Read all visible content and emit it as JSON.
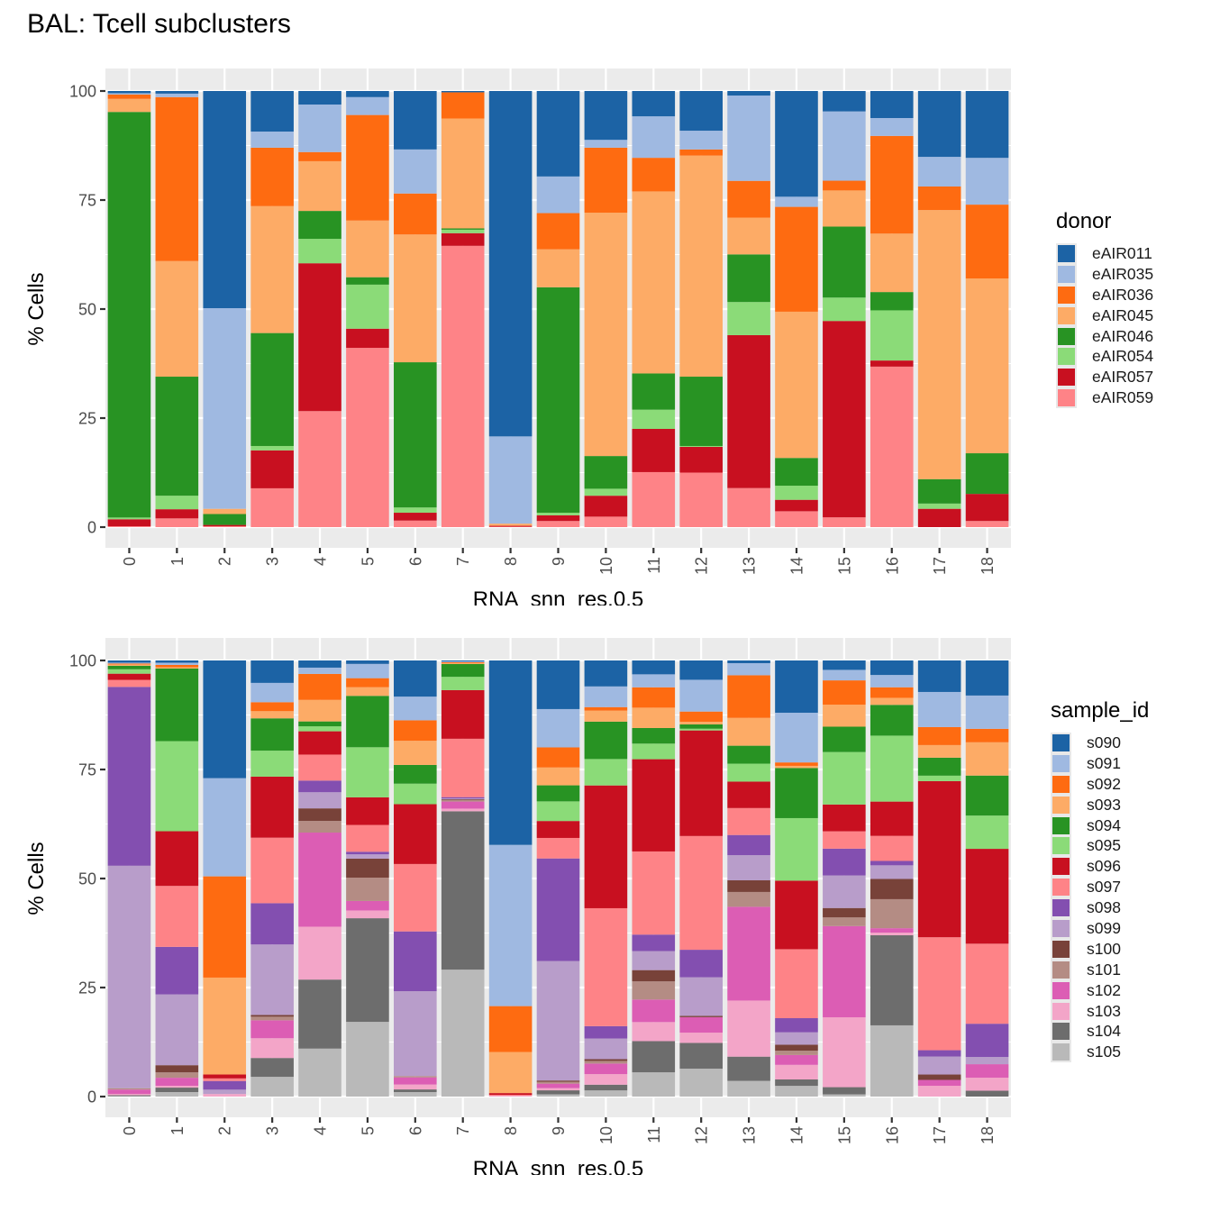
{
  "title": "BAL: Tcell subclusters",
  "chart_data": [
    {
      "type": "bar",
      "stacked": true,
      "title": "",
      "xlabel": "RNA_snn_res.0.5",
      "ylabel": "% Cells",
      "ylim": [
        0,
        100
      ],
      "yticks": [
        "0",
        "25",
        "50",
        "75",
        "100"
      ],
      "grid": true,
      "legend_title": "donor",
      "legend_position": "right",
      "categories": [
        "0",
        "1",
        "2",
        "3",
        "4",
        "5",
        "6",
        "7",
        "8",
        "9",
        "10",
        "11",
        "12",
        "13",
        "14",
        "15",
        "16",
        "17",
        "18"
      ],
      "series": [
        {
          "name": "eAIR011",
          "color": "#1c63a5",
          "values": [
            0.5,
            0.6,
            49.8,
            9.3,
            3.1,
            1.4,
            13.4,
            0.3,
            79.2,
            19.6,
            11.2,
            5.8,
            9.1,
            1.0,
            24.0,
            4.8,
            6.2,
            15.1,
            15.3
          ]
        },
        {
          "name": "eAIR035",
          "color": "#9fb9e1",
          "values": [
            0.3,
            0.8,
            46.0,
            3.7,
            10.9,
            4.1,
            10.1,
            0.0,
            20.0,
            8.4,
            1.8,
            9.5,
            4.3,
            18.8,
            2.3,
            16.3,
            4.1,
            6.8,
            10.7
          ]
        },
        {
          "name": "eAIR036",
          "color": "#fe6b11",
          "values": [
            1.0,
            37.6,
            0.0,
            13.4,
            2.1,
            24.2,
            9.4,
            6.0,
            0.0,
            8.3,
            14.9,
            7.7,
            1.4,
            8.1,
            23.8,
            2.3,
            22.4,
            5.4,
            16.9
          ]
        },
        {
          "name": "eAIR045",
          "color": "#fdab66",
          "values": [
            3.0,
            26.5,
            1.2,
            29.1,
            11.4,
            13.0,
            29.3,
            25.2,
            0.5,
            8.7,
            55.8,
            41.7,
            50.7,
            8.1,
            33.2,
            8.5,
            13.4,
            61.7,
            40.0
          ]
        },
        {
          "name": "eAIR046",
          "color": "#289323",
          "values": [
            93.0,
            27.3,
            2.5,
            25.9,
            6.4,
            1.7,
            33.3,
            0.3,
            0.0,
            51.7,
            7.5,
            8.3,
            15.9,
            10.5,
            6.3,
            16.7,
            4.2,
            5.6,
            9.3
          ]
        },
        {
          "name": "eAIR054",
          "color": "#8bdb78",
          "values": [
            0.4,
            3.1,
            0.0,
            1.0,
            5.6,
            10.1,
            1.2,
            0.8,
            0.0,
            0.6,
            1.6,
            4.4,
            0.2,
            7.3,
            3.2,
            5.5,
            11.5,
            1.2,
            0.0
          ]
        },
        {
          "name": "eAIR057",
          "color": "#c81020",
          "values": [
            1.6,
            2.1,
            0.3,
            8.7,
            33.9,
            4.4,
            1.8,
            2.9,
            0.2,
            1.3,
            4.8,
            9.9,
            5.9,
            33.7,
            2.6,
            46.2,
            1.4,
            4.2,
            6.2
          ]
        },
        {
          "name": "eAIR059",
          "color": "#fe8387",
          "values": [
            0.2,
            2.0,
            0.2,
            8.9,
            26.6,
            41.1,
            1.5,
            64.5,
            0.1,
            1.4,
            2.4,
            12.6,
            12.5,
            8.6,
            3.6,
            2.3,
            36.8,
            0.0,
            1.4
          ]
        }
      ]
    },
    {
      "type": "bar",
      "stacked": true,
      "title": "",
      "xlabel": "RNA_snn_res.0.5",
      "ylabel": "% Cells",
      "ylim": [
        0,
        100
      ],
      "yticks": [
        "0",
        "25",
        "50",
        "75",
        "100"
      ],
      "grid": true,
      "legend_title": "sample_id",
      "legend_position": "right",
      "categories": [
        "0",
        "1",
        "2",
        "3",
        "4",
        "5",
        "6",
        "7",
        "8",
        "9",
        "10",
        "11",
        "12",
        "13",
        "14",
        "15",
        "16",
        "17",
        "18"
      ],
      "series": [
        {
          "name": "s090",
          "color": "#1c63a5",
          "values": [
            0.5,
            0.5,
            27.2,
            5.0,
            1.6,
            0.8,
            8.1,
            0.2,
            42.2,
            10.9,
            5.9,
            3.2,
            4.5,
            0.6,
            12.2,
            2.6,
            3.3,
            7.0,
            7.8
          ]
        },
        {
          "name": "s091",
          "color": "#9fb9e1",
          "values": [
            0.2,
            0.5,
            22.7,
            4.3,
            1.4,
            3.3,
            5.3,
            0.2,
            36.9,
            8.6,
            4.7,
            3.0,
            7.4,
            2.7,
            11.6,
            2.9,
            2.8,
            7.8,
            7.4
          ]
        },
        {
          "name": "s092",
          "color": "#fe6b11",
          "values": [
            0.2,
            0.5,
            23.4,
            2.0,
            5.8,
            2.1,
            4.6,
            0.2,
            10.5,
            4.5,
            0.8,
            4.7,
            2.4,
            9.5,
            0.8,
            6.7,
            2.4,
            4.0,
            3.0
          ]
        },
        {
          "name": "s093",
          "color": "#fdab66",
          "values": [
            0.3,
            0.3,
            22.4,
            1.6,
            4.8,
            2.0,
            5.4,
            0.2,
            9.4,
            4.0,
            2.5,
            4.7,
            0.6,
            6.2,
            0.5,
            6.1,
            1.6,
            2.8,
            7.4
          ]
        },
        {
          "name": "s094",
          "color": "#289323",
          "values": [
            0.8,
            16.2,
            0.0,
            7.2,
            1.1,
            11.9,
            4.2,
            2.9,
            0.0,
            3.6,
            8.5,
            3.6,
            1.0,
            4.0,
            11.7,
            7.0,
            7.0,
            4.0,
            8.9
          ]
        },
        {
          "name": "s095",
          "color": "#8bdb78",
          "values": [
            1.0,
            20.1,
            0.0,
            5.8,
            1.1,
            11.6,
            4.6,
            3.0,
            0.0,
            4.4,
            6.0,
            3.6,
            0.4,
            4.0,
            14.6,
            14.5,
            15.0,
            1.2,
            7.4
          ]
        },
        {
          "name": "s096",
          "color": "#c81020",
          "values": [
            1.4,
            12.2,
            0.9,
            13.6,
            5.2,
            6.4,
            13.4,
            11.0,
            0.4,
            3.8,
            27.9,
            21.3,
            24.6,
            5.9,
            16.0,
            7.4,
            7.8,
            34.7,
            21.1
          ]
        },
        {
          "name": "s097",
          "color": "#fe8387",
          "values": [
            1.6,
            13.6,
            0.6,
            14.6,
            5.8,
            6.2,
            15.1,
            13.2,
            0.2,
            4.6,
            26.8,
            19.2,
            26.5,
            6.0,
            16.1,
            4.8,
            5.7,
            25.1,
            17.8
          ]
        },
        {
          "name": "s098",
          "color": "#834fb0",
          "values": [
            40.6,
            10.6,
            2.0,
            9.2,
            2.6,
            0.6,
            13.4,
            0.3,
            0.0,
            23.0,
            2.8,
            3.8,
            6.4,
            4.5,
            3.3,
            7.4,
            1.0,
            1.4,
            7.4
          ]
        },
        {
          "name": "s099",
          "color": "#b89dca",
          "values": [
            50.5,
            15.8,
            1.0,
            15.7,
            3.6,
            1.0,
            19.0,
            0.2,
            0.0,
            26.8,
            4.7,
            4.4,
            9.0,
            5.6,
            2.9,
            9.0,
            3.1,
            4.0,
            1.6
          ]
        },
        {
          "name": "s100",
          "color": "#784239",
          "values": [
            0.0,
            1.6,
            0.0,
            0.4,
            2.8,
            4.4,
            0.0,
            0.2,
            0.0,
            0.3,
            0.4,
            2.6,
            0.3,
            2.6,
            1.4,
            2.6,
            4.6,
            1.2,
            0.0
          ]
        },
        {
          "name": "s101",
          "color": "#b48c84",
          "values": [
            0.3,
            1.2,
            0.0,
            0.8,
            2.6,
            5.4,
            0.3,
            0.3,
            0.0,
            0.4,
            0.6,
            4.2,
            0.0,
            3.3,
            1.0,
            2.4,
            6.6,
            0.0,
            0.0
          ]
        },
        {
          "name": "s102",
          "color": "#dc5db4",
          "values": [
            1.0,
            1.8,
            0.0,
            4.0,
            21.0,
            2.2,
            1.6,
            1.6,
            0.0,
            1.0,
            2.4,
            5.2,
            3.6,
            20.9,
            2.3,
            25.2,
            1.0,
            1.3,
            3.0
          ]
        },
        {
          "name": "s103",
          "color": "#f3a5c8",
          "values": [
            0.3,
            0.4,
            0.6,
            4.4,
            11.8,
            1.8,
            1.1,
            0.6,
            0.2,
            0.5,
            2.4,
            4.4,
            2.4,
            12.5,
            3.4,
            19.3,
            0.6,
            2.4,
            2.9
          ]
        },
        {
          "name": "s104",
          "color": "#6d6d6d",
          "values": [
            0.2,
            1.0,
            0.0,
            4.2,
            15.4,
            24.0,
            0.6,
            35.8,
            0.0,
            0.9,
            1.3,
            7.2,
            6.0,
            5.4,
            1.5,
            2.0,
            20.5,
            0.0,
            1.3
          ]
        },
        {
          "name": "s105",
          "color": "#b9b9b9",
          "values": [
            0.1,
            1.0,
            0.0,
            4.4,
            10.7,
            17.3,
            1.0,
            28.7,
            0.0,
            0.5,
            1.4,
            5.6,
            6.5,
            3.5,
            2.5,
            0.6,
            16.2,
            0.0,
            0.0
          ]
        }
      ]
    }
  ]
}
